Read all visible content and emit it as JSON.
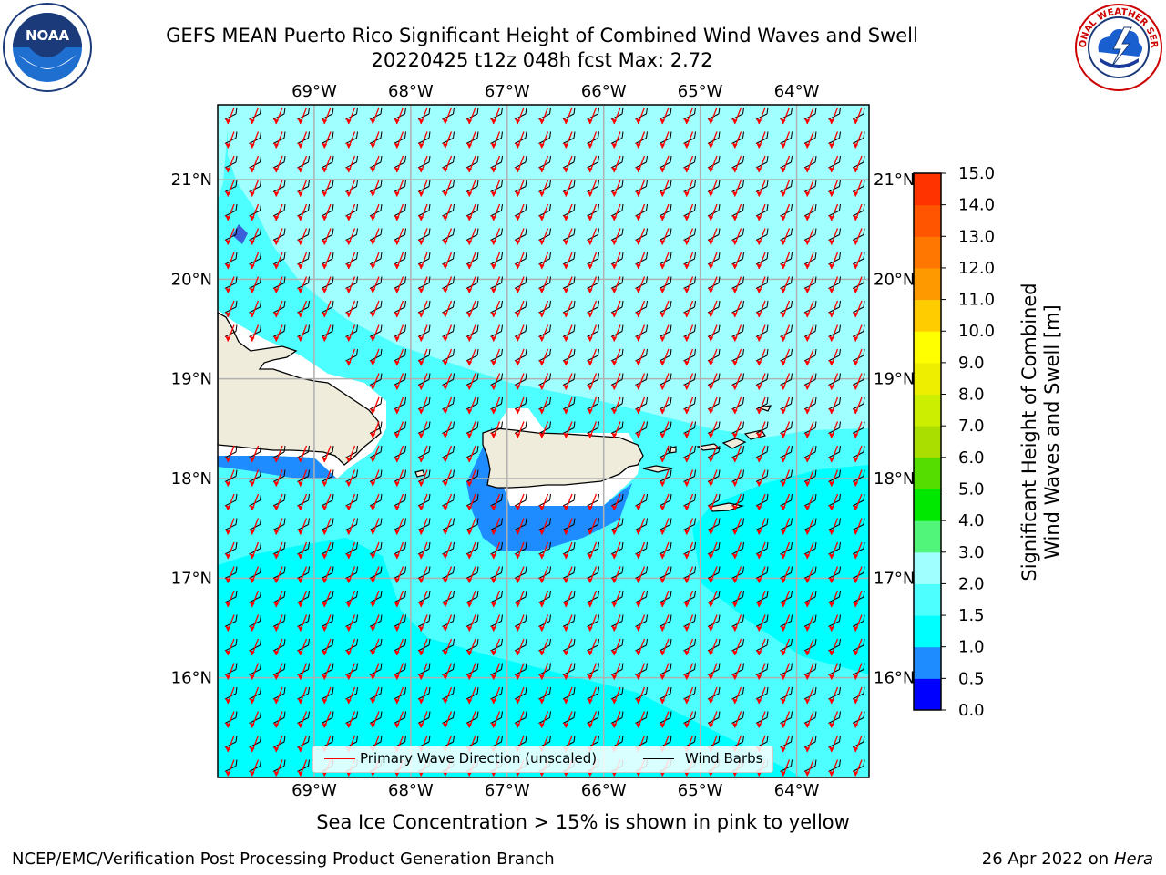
{
  "title": {
    "line1": "GEFS MEAN Puerto Rico Significant Height of Combined Wind Waves and Swell",
    "line2": "20220425 t12z 048h fcst   Max: 2.72"
  },
  "logos": {
    "left": {
      "text": "NOAA",
      "ring_text": "NATIONAL OCEANIC AND ATMOSPHERIC ADMINISTRATION"
    },
    "right": {
      "ring_text": "NATIONAL WEATHER SERVICE"
    }
  },
  "map": {
    "lon_range": [
      -70.0,
      -63.25
    ],
    "lat_range": [
      15.0,
      21.75
    ],
    "lon_ticks": [
      {
        "v": -69,
        "label": "69°W"
      },
      {
        "v": -68,
        "label": "68°W"
      },
      {
        "v": -67,
        "label": "67°W"
      },
      {
        "v": -66,
        "label": "66°W"
      },
      {
        "v": -65,
        "label": "65°W"
      },
      {
        "v": -64,
        "label": "64°W"
      }
    ],
    "lat_ticks": [
      {
        "v": 21,
        "label": "21°N"
      },
      {
        "v": 20,
        "label": "20°N"
      },
      {
        "v": 19,
        "label": "19°N"
      },
      {
        "v": 18,
        "label": "18°N"
      },
      {
        "v": 17,
        "label": "17°N"
      },
      {
        "v": 16,
        "label": "16°N"
      }
    ],
    "colors": {
      "land": "#efecdc",
      "coast": "#000000",
      "grid": "#b0b0b0",
      "wave_arrow": "#ff0000",
      "wind_barb": "#000000"
    }
  },
  "legend": {
    "wave_label": "Primary Wave Direction (unscaled)",
    "barb_label": "Wind Barbs"
  },
  "colorbar": {
    "title_line1": "Significant Height of Combined",
    "title_line2": "Wind Waves and Swell [m]",
    "levels": [
      "0.0",
      "0.5",
      "1.0",
      "1.5",
      "2.0",
      "3.0",
      "4.0",
      "5.0",
      "6.0",
      "7.0",
      "8.0",
      "9.0",
      "10.0",
      "11.0",
      "12.0",
      "13.0",
      "14.0",
      "15.0"
    ],
    "colors": [
      "#0000ff",
      "#1e8cff",
      "#00ffff",
      "#4dffff",
      "#a0ffff",
      "#50f57a",
      "#00e800",
      "#55dd00",
      "#aadd00",
      "#ccee00",
      "#eeee00",
      "#ffff00",
      "#ffcc00",
      "#ff9900",
      "#ff7700",
      "#ff5500",
      "#ff3300"
    ]
  },
  "subtitle": "Sea Ice Concentration > 15% is shown in pink to yellow",
  "footer": {
    "left": "NCEP/EMC/Verification Post Processing Product Generation Branch",
    "right_prefix": "26 Apr 2022 on",
    "right_host": "Hera"
  }
}
